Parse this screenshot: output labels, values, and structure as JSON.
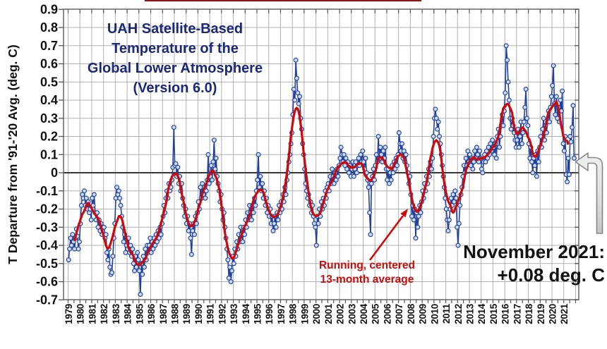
{
  "colors": {
    "title_text": "#1c2878",
    "monthly_line": "#23409f",
    "marker_fill": "#cfdcf0",
    "marker_stroke": "#24469e",
    "average_line": "#cc0a0a",
    "annotation_red": "#cc0a0a",
    "annotation_black": "#111111",
    "grid": "#b0b0b0",
    "axis_border": "#666666",
    "zero_line": "#383838",
    "tick": "#555555",
    "callout_arrow_fill": "#dcdcdc",
    "callout_arrow_stroke": "#868686",
    "top_strip": "#8a1616"
  },
  "chart_data": {
    "type": "line",
    "title_lines": [
      "UAH Satellite-Based",
      "Temperature of the",
      "Global Lower Atmosphere",
      "(Version 6.0)"
    ],
    "ylabel": "T Departure from '91-'20 Avg. (deg. C)",
    "ylim": [
      -0.7,
      0.9
    ],
    "ytick_step": 0.1,
    "ytick_labels": [
      "0.9",
      "0.8",
      "0.7",
      "0.6",
      "0.5",
      "0.4",
      "0.3",
      "0.2",
      "0.1",
      "0",
      "-0.1",
      "-0.2",
      "-0.3",
      "-0.4",
      "-0.5",
      "-0.6",
      "-0.7"
    ],
    "xtick_labels": [
      "1979",
      "1980",
      "1981",
      "1982",
      "1983",
      "1984",
      "1985",
      "1986",
      "1987",
      "1988",
      "1989",
      "1990",
      "1991",
      "1992",
      "1993",
      "1994",
      "1995",
      "1996",
      "1997",
      "1998",
      "1999",
      "2000",
      "2001",
      "2002",
      "2003",
      "2004",
      "2005",
      "2006",
      "2007",
      "2008",
      "2009",
      "2010",
      "2011",
      "2012",
      "2013",
      "2014",
      "2015",
      "2016",
      "2017",
      "2018",
      "2019",
      "2020",
      "2021"
    ],
    "grid": "on",
    "legend": "none",
    "series_start": "1979-01",
    "series_end": "2021-11",
    "series": [
      {
        "name": "Monthly temperature anomaly",
        "style": "line+markers",
        "values": [
          -0.48,
          -0.42,
          -0.36,
          -0.4,
          -0.34,
          -0.38,
          -0.42,
          -0.36,
          -0.31,
          -0.35,
          -0.42,
          -0.38,
          -0.28,
          -0.18,
          -0.12,
          -0.14,
          -0.1,
          -0.18,
          -0.14,
          -0.2,
          -0.16,
          -0.22,
          -0.2,
          -0.26,
          -0.14,
          -0.18,
          -0.12,
          -0.22,
          -0.26,
          -0.22,
          -0.3,
          -0.26,
          -0.32,
          -0.28,
          -0.34,
          -0.3,
          -0.3,
          -0.36,
          -0.34,
          -0.44,
          -0.48,
          -0.42,
          -0.52,
          -0.56,
          -0.55,
          -0.46,
          -0.36,
          -0.28,
          -0.14,
          -0.08,
          -0.12,
          -0.1,
          -0.14,
          -0.18,
          -0.24,
          -0.3,
          -0.38,
          -0.34,
          -0.44,
          -0.4,
          -0.42,
          -0.36,
          -0.44,
          -0.4,
          -0.46,
          -0.42,
          -0.5,
          -0.54,
          -0.46,
          -0.52,
          -0.44,
          -0.48,
          -0.54,
          -0.67,
          -0.5,
          -0.56,
          -0.46,
          -0.52,
          -0.42,
          -0.48,
          -0.4,
          -0.44,
          -0.4,
          -0.36,
          -0.44,
          -0.38,
          -0.42,
          -0.36,
          -0.4,
          -0.34,
          -0.38,
          -0.32,
          -0.36,
          -0.3,
          -0.34,
          -0.28,
          -0.24,
          -0.18,
          -0.22,
          -0.14,
          -0.1,
          -0.14,
          -0.06,
          -0.1,
          -0.08,
          -0.04,
          0.03,
          0.25,
          0.04,
          0.05,
          -0.02,
          0.03,
          -0.06,
          -0.02,
          -0.1,
          -0.06,
          -0.14,
          -0.18,
          -0.24,
          -0.2,
          -0.28,
          -0.24,
          -0.32,
          -0.28,
          -0.36,
          -0.45,
          -0.32,
          -0.28,
          -0.34,
          -0.24,
          -0.28,
          -0.22,
          -0.16,
          -0.2,
          -0.08,
          -0.14,
          -0.06,
          -0.12,
          -0.08,
          -0.14,
          -0.1,
          -0.04,
          0.1,
          -0.06,
          -0.02,
          0.04,
          -0.04,
          0.06,
          0.18,
          0.02,
          0.08,
          -0.02,
          -0.06,
          -0.1,
          -0.16,
          -0.12,
          -0.2,
          -0.26,
          -0.22,
          -0.3,
          -0.36,
          -0.42,
          -0.48,
          -0.58,
          -0.52,
          -0.6,
          -0.54,
          -0.46,
          -0.5,
          -0.42,
          -0.46,
          -0.38,
          -0.42,
          -0.34,
          -0.38,
          -0.3,
          -0.34,
          -0.38,
          -0.3,
          -0.34,
          -0.26,
          -0.3,
          -0.22,
          -0.26,
          -0.18,
          -0.22,
          -0.26,
          -0.18,
          -0.22,
          -0.14,
          -0.18,
          -0.1,
          -0.04,
          0.1,
          -0.08,
          -0.02,
          -0.1,
          -0.06,
          -0.14,
          -0.1,
          -0.18,
          -0.14,
          -0.22,
          -0.18,
          -0.24,
          -0.2,
          -0.28,
          -0.24,
          -0.32,
          -0.28,
          -0.24,
          -0.3,
          -0.22,
          -0.26,
          -0.18,
          -0.22,
          -0.16,
          -0.2,
          -0.12,
          -0.16,
          -0.08,
          -0.12,
          -0.04,
          0.0,
          0.06,
          0.1,
          0.16,
          0.22,
          0.32,
          0.46,
          0.4,
          0.62,
          0.52,
          0.44,
          0.38,
          0.42,
          0.3,
          0.24,
          0.16,
          0.1,
          0.02,
          -0.06,
          -0.1,
          -0.14,
          -0.12,
          -0.18,
          -0.16,
          -0.22,
          -0.18,
          -0.24,
          -0.28,
          -0.3,
          -0.4,
          -0.24,
          -0.28,
          -0.2,
          -0.24,
          -0.16,
          -0.2,
          -0.14,
          -0.18,
          -0.1,
          -0.14,
          -0.08,
          -0.06,
          -0.1,
          -0.02,
          -0.06,
          0.02,
          -0.02,
          -0.06,
          0.0,
          -0.04,
          0.02,
          -0.02,
          0.04,
          0.08,
          0.14,
          0.1,
          0.06,
          0.1,
          0.04,
          0.08,
          0.02,
          0.06,
          0.0,
          0.04,
          -0.02,
          0.02,
          0.06,
          -0.02,
          0.02,
          0.06,
          0.0,
          0.04,
          0.08,
          0.04,
          0.1,
          0.06,
          0.12,
          0.06,
          0.02,
          0.08,
          0.0,
          -0.04,
          -0.08,
          -0.22,
          -0.34,
          -0.06,
          -0.02,
          0.02,
          -0.04,
          0.04,
          0.1,
          0.06,
          0.2,
          0.08,
          0.14,
          0.1,
          0.06,
          0.12,
          0.08,
          0.14,
          0.02,
          -0.04,
          0.02,
          -0.06,
          0.0,
          -0.04,
          0.04,
          0.0,
          0.06,
          0.02,
          0.08,
          0.04,
          0.1,
          0.22,
          0.16,
          0.12,
          0.16,
          0.08,
          0.12,
          0.06,
          0.1,
          0.04,
          0.0,
          -0.06,
          -0.02,
          -0.12,
          -0.24,
          -0.18,
          -0.26,
          -0.2,
          -0.36,
          -0.22,
          -0.3,
          -0.24,
          -0.18,
          -0.22,
          -0.16,
          -0.1,
          -0.14,
          -0.06,
          -0.1,
          -0.02,
          -0.06,
          0.02,
          -0.02,
          0.06,
          0.02,
          0.08,
          0.2,
          0.3,
          0.35,
          0.3,
          0.24,
          0.28,
          0.2,
          0.16,
          0.1,
          0.04,
          -0.02,
          -0.08,
          -0.14,
          -0.2,
          -0.26,
          -0.32,
          -0.26,
          -0.2,
          -0.14,
          -0.18,
          -0.12,
          -0.16,
          -0.1,
          -0.14,
          -0.3,
          -0.4,
          -0.28,
          -0.18,
          -0.12,
          -0.08,
          -0.02,
          0.04,
          0.0,
          0.08,
          0.04,
          0.12,
          0.06,
          0.1,
          0.04,
          0.08,
          0.02,
          0.06,
          0.12,
          0.08,
          0.14,
          0.1,
          0.06,
          0.12,
          0.08,
          0.02,
          0.0,
          0.06,
          0.1,
          0.06,
          0.12,
          0.08,
          0.14,
          0.1,
          0.16,
          0.12,
          0.18,
          0.14,
          0.1,
          0.16,
          0.08,
          0.2,
          0.24,
          0.14,
          0.2,
          0.26,
          0.32,
          0.26,
          0.34,
          0.44,
          0.7,
          0.62,
          0.5,
          0.4,
          0.3,
          0.24,
          0.3,
          0.26,
          0.22,
          0.18,
          0.14,
          0.18,
          0.24,
          0.14,
          0.2,
          0.28,
          0.16,
          0.22,
          0.28,
          0.36,
          0.46,
          0.3,
          0.26,
          0.16,
          0.08,
          0.14,
          0.06,
          0.0,
          0.08,
          0.04,
          0.1,
          -0.02,
          0.12,
          0.06,
          0.14,
          0.2,
          0.14,
          0.24,
          0.3,
          0.18,
          0.26,
          0.22,
          0.28,
          0.34,
          0.28,
          0.36,
          0.42,
          0.48,
          0.59,
          0.38,
          0.32,
          0.42,
          0.3,
          0.36,
          0.28,
          0.4,
          0.34,
          0.45,
          0.16,
          0.12,
          0.2,
          -0.01,
          -0.05,
          0.08,
          -0.01,
          0.2,
          0.17,
          0.25,
          0.37,
          0.08
        ]
      },
      {
        "name": "Running, centered 13-month average",
        "style": "line",
        "window_months": 13
      }
    ],
    "annotations": [
      {
        "id": "running-average",
        "text_lines": [
          "Running, centered",
          "13-month average"
        ]
      },
      {
        "id": "latest-value",
        "text_lines": [
          "November 2021:",
          "+0.08 deg. C"
        ],
        "value": 0.08
      }
    ]
  }
}
